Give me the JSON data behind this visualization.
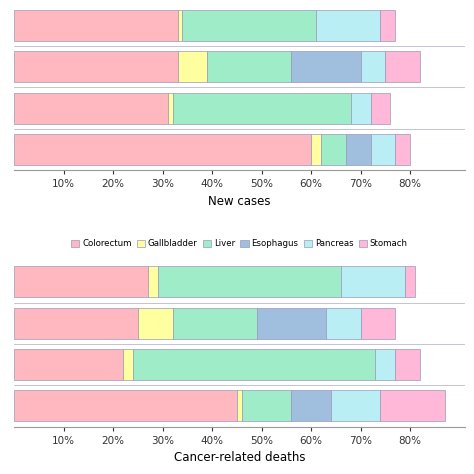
{
  "new_cases": [
    {
      "colorectum": 33,
      "gallbladder": 1,
      "liver": 27,
      "esophagus": 0,
      "pancreas": 13,
      "stomach": 3
    },
    {
      "colorectum": 33,
      "gallbladder": 6,
      "liver": 17,
      "esophagus": 14,
      "pancreas": 5,
      "stomach": 7
    },
    {
      "colorectum": 31,
      "gallbladder": 1,
      "liver": 36,
      "esophagus": 0,
      "pancreas": 4,
      "stomach": 4
    },
    {
      "colorectum": 60,
      "gallbladder": 2,
      "liver": 5,
      "esophagus": 5,
      "pancreas": 5,
      "stomach": 3
    }
  ],
  "cancer_deaths": [
    {
      "colorectum": 27,
      "gallbladder": 2,
      "liver": 37,
      "esophagus": 0,
      "pancreas": 13,
      "stomach": 2
    },
    {
      "colorectum": 25,
      "gallbladder": 7,
      "liver": 17,
      "esophagus": 14,
      "pancreas": 7,
      "stomach": 7
    },
    {
      "colorectum": 22,
      "gallbladder": 2,
      "liver": 49,
      "esophagus": 0,
      "pancreas": 4,
      "stomach": 5
    },
    {
      "colorectum": 45,
      "gallbladder": 1,
      "liver": 10,
      "esophagus": 8,
      "pancreas": 10,
      "stomach": 13
    }
  ],
  "seg_colors": {
    "colorectum": "#FFB6C1",
    "gallbladder": "#FFFF99",
    "liver": "#98EEC8",
    "esophagus": "#ADD8E6",
    "pancreas": "#B0EEF8",
    "stomach": "#FFB6D9"
  },
  "xlabel_new": "New cases",
  "xlabel_deaths": "Cancer-related deaths",
  "xtick_values": [
    10,
    20,
    30,
    40,
    50,
    60,
    70,
    80
  ],
  "background_color": "#ffffff",
  "legend_labels": [
    "Colorectum",
    "Gallbladder",
    "Liver",
    "Esophagus",
    "Pancreas",
    "Stomach"
  ],
  "segments": [
    "colorectum",
    "gallbladder",
    "liver",
    "esophagus",
    "pancreas",
    "stomach"
  ],
  "edge_color": "#9999BB",
  "xlim": [
    0,
    91
  ],
  "bar_height": 0.75
}
